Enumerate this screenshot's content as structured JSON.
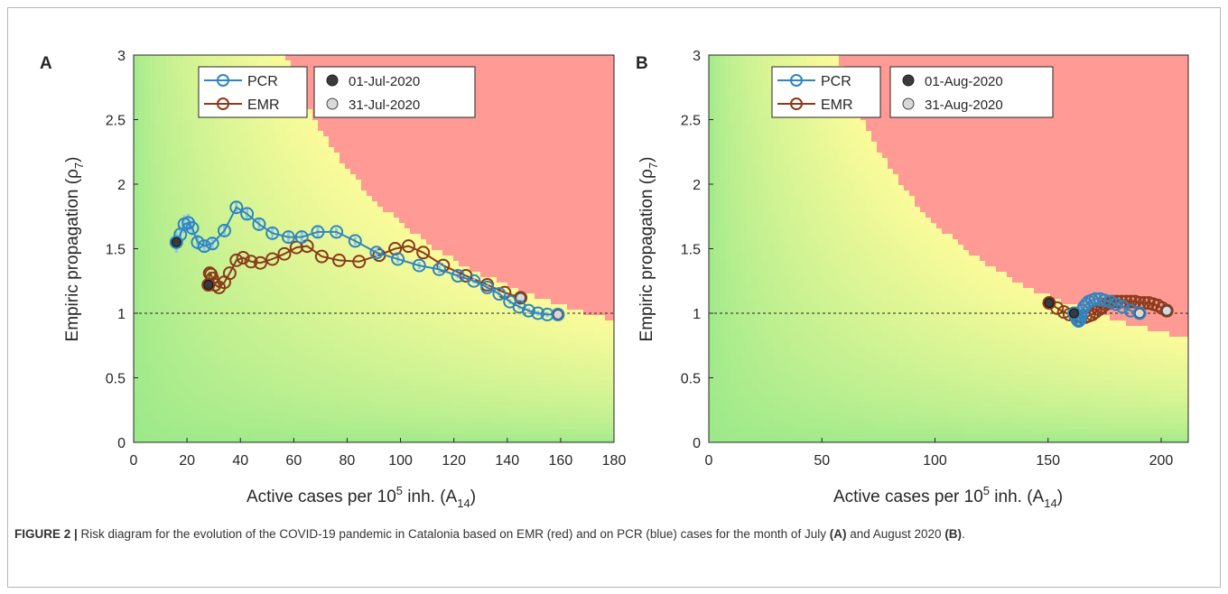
{
  "caption": {
    "label": "FIGURE 2 |",
    "part1": " Risk diagram for the evolution of the COVID-19 pandemic in Catalonia based on EMR (red) and on PCR (blue) cases for the month of July ",
    "ref_a": "(A)",
    "part2": " and August 2020 ",
    "ref_b": "(B)",
    "part3": "."
  },
  "colors": {
    "pcr": "#2e86c1",
    "emr": "#8b3a1a",
    "start_marker": "#3a3a3a",
    "end_marker": "#d9d9d9",
    "red_zone": "#ff9a94",
    "yellow_zone": "#fbfb9a",
    "green_zone": "#9be98a"
  },
  "chart_data": [
    {
      "panel_label": "A",
      "type": "scatter",
      "xlabel": "Active cases per 10",
      "xlabel_sup": "5",
      "xlabel_tail": " inh. (A",
      "xlabel_sub": "14",
      "xlabel_close": ")",
      "ylabel": "Empiric propagation  (ρ",
      "ylabel_sub": "7",
      "ylabel_close": ")",
      "xlim": [
        0,
        180
      ],
      "ylim": [
        0,
        3
      ],
      "xticks": [
        0,
        20,
        40,
        60,
        80,
        100,
        120,
        140,
        160,
        180
      ],
      "yticks": [
        0,
        0.5,
        1,
        1.5,
        2,
        2.5,
        3
      ],
      "ytick_labels": [
        "0",
        "0.5",
        "1",
        "1.5",
        "2",
        "2.5",
        "3"
      ],
      "reference_line_y": 1,
      "legend_series": [
        "PCR",
        "EMR"
      ],
      "legend_dates": [
        "01-Jul-2020",
        "31-Jul-2020"
      ],
      "series": [
        {
          "name": "PCR",
          "x": [
            16,
            17.5,
            19,
            20.5,
            22,
            24,
            26.5,
            29.5,
            34,
            38.5,
            42.5,
            47,
            52,
            58,
            63,
            69,
            76,
            83,
            91,
            99,
            107,
            114.5,
            121.5,
            127.5,
            132.5,
            137,
            141,
            144.5,
            148,
            151.5,
            155,
            159
          ],
          "y": [
            1.55,
            1.61,
            1.69,
            1.7,
            1.66,
            1.55,
            1.52,
            1.54,
            1.64,
            1.82,
            1.77,
            1.69,
            1.62,
            1.59,
            1.59,
            1.63,
            1.63,
            1.56,
            1.47,
            1.42,
            1.37,
            1.34,
            1.29,
            1.25,
            1.2,
            1.15,
            1.09,
            1.05,
            1.02,
            1.0,
            0.99,
            0.99
          ],
          "errors": [
            0.08,
            0.07,
            0.07,
            0.07,
            0.06,
            0.06,
            0.05,
            0.05,
            0.05,
            0.05,
            0.05,
            0.04,
            0.04,
            0.04,
            0.04,
            0.04,
            0.03,
            0.03,
            0.03,
            0.03,
            0.03,
            0.03,
            0.02,
            0.02,
            0.02,
            0.02,
            0.02,
            0.02,
            0.02,
            0.02,
            0.02,
            0.02
          ]
        },
        {
          "name": "EMR",
          "x": [
            28,
            28.5,
            29,
            29.5,
            30.5,
            32,
            34,
            36,
            38.5,
            41,
            44,
            47.5,
            52,
            56.5,
            61,
            65,
            70.5,
            77,
            84.5,
            92,
            98,
            103,
            108.5,
            116,
            124.5,
            132.5,
            139,
            145
          ],
          "y": [
            1.22,
            1.31,
            1.3,
            1.27,
            1.22,
            1.2,
            1.24,
            1.31,
            1.41,
            1.43,
            1.4,
            1.39,
            1.42,
            1.46,
            1.51,
            1.52,
            1.44,
            1.41,
            1.4,
            1.45,
            1.5,
            1.52,
            1.47,
            1.37,
            1.29,
            1.22,
            1.16,
            1.12
          ],
          "errors": []
        }
      ]
    },
    {
      "panel_label": "B",
      "type": "scatter",
      "xlabel": "Active cases per 10",
      "xlabel_sup": "5",
      "xlabel_tail": " inh. (A",
      "xlabel_sub": "14",
      "xlabel_close": ")",
      "ylabel": "Empiric propagation  (ρ",
      "ylabel_sub": "7",
      "ylabel_close": ")",
      "xlim": [
        0,
        212
      ],
      "ylim": [
        0,
        3
      ],
      "xticks": [
        0,
        50,
        100,
        150,
        200
      ],
      "yticks": [
        0,
        0.5,
        1,
        1.5,
        2,
        2.5,
        3
      ],
      "ytick_labels": [
        "0",
        "0.5",
        "1",
        "1.5",
        "2",
        "2.5",
        "3"
      ],
      "reference_line_y": 1,
      "legend_series": [
        "PCR",
        "EMR"
      ],
      "legend_dates": [
        "01-Aug-2020",
        "31-Aug-2020"
      ],
      "series": [
        {
          "name": "PCR",
          "x": [
            161.5,
            162.5,
            163,
            163.5,
            164,
            164.5,
            165,
            166,
            167,
            168,
            169.5,
            171,
            173,
            175,
            177.5,
            180,
            183,
            186.5,
            190.5
          ],
          "y": [
            1.0,
            0.97,
            0.95,
            0.94,
            0.95,
            0.98,
            1.02,
            1.05,
            1.07,
            1.09,
            1.1,
            1.11,
            1.11,
            1.1,
            1.09,
            1.07,
            1.05,
            1.02,
            1.0
          ],
          "errors": []
        },
        {
          "name": "EMR",
          "x": [
            150.5,
            154,
            157,
            159.5,
            162,
            164.5,
            166.5,
            168,
            169.5,
            171,
            172.5,
            174,
            175.5,
            177,
            178.5,
            180.5,
            182.5,
            184.5,
            186.5,
            188.5,
            190.5,
            192.5,
            194.5,
            196.5,
            198.5,
            200.5,
            202.5
          ],
          "y": [
            1.08,
            1.04,
            1.01,
            0.99,
            0.98,
            0.97,
            0.97,
            0.98,
            0.99,
            1.01,
            1.03,
            1.05,
            1.07,
            1.08,
            1.09,
            1.09,
            1.09,
            1.09,
            1.09,
            1.09,
            1.08,
            1.08,
            1.08,
            1.07,
            1.06,
            1.04,
            1.02
          ],
          "errors": []
        }
      ]
    }
  ]
}
